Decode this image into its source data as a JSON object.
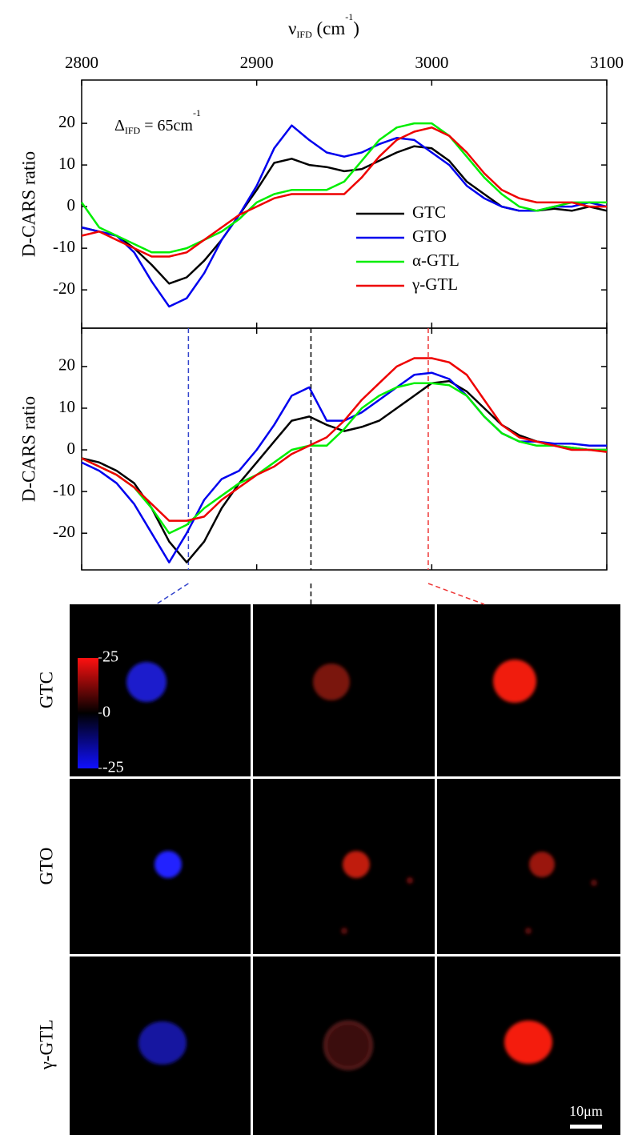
{
  "chart_data": [
    {
      "type": "line",
      "x_label": [
        "ν",
        "IFD",
        " (cm",
        "-1",
        ")"
      ],
      "y_label": "D-CARS ratio",
      "annotation": [
        "Δ",
        "IFD",
        " = 65cm",
        "-1"
      ],
      "xlim": [
        2800,
        3100
      ],
      "xticks": [
        2800,
        2900,
        3000,
        3100
      ],
      "ylim": [
        -29.2,
        30.4
      ],
      "yticks": [
        -20,
        -10,
        0,
        10,
        20
      ],
      "legend": "center right",
      "x": [
        2800,
        2810,
        2820,
        2830,
        2840,
        2850,
        2860,
        2870,
        2880,
        2890,
        2900,
        2910,
        2920,
        2930,
        2940,
        2950,
        2960,
        2970,
        2980,
        2990,
        3000,
        3010,
        3020,
        3030,
        3040,
        3050,
        3060,
        3070,
        3080,
        3090,
        3100
      ],
      "series": [
        {
          "name": "GTC",
          "color": "#000000",
          "values": [
            -5,
            -6,
            -7,
            -10,
            -14,
            -18.5,
            -17,
            -13,
            -8,
            -2,
            4,
            10.5,
            11.5,
            10,
            9.5,
            8.5,
            9,
            11,
            13,
            14.5,
            14,
            11,
            6,
            3,
            0,
            -1,
            -1,
            -0.5,
            -1,
            0,
            -1
          ]
        },
        {
          "name": "GTO",
          "color": "#0000ee",
          "values": [
            -5,
            -6,
            -7,
            -11,
            -18,
            -24,
            -22,
            -16,
            -8,
            -2,
            5,
            14,
            19.5,
            16,
            13,
            12,
            13,
            15,
            16.5,
            16,
            13,
            10,
            5,
            2,
            0,
            -1,
            -1,
            0,
            0,
            1,
            0
          ]
        },
        {
          "name": "α-GTL",
          "color": "#00ee00",
          "values": [
            1,
            -5,
            -7,
            -9,
            -11,
            -11,
            -10,
            -8,
            -6,
            -3,
            1,
            3,
            4,
            4,
            4,
            6,
            11,
            16,
            19,
            20,
            20,
            17,
            12,
            7,
            3,
            0,
            -1,
            0,
            1,
            1,
            1
          ]
        },
        {
          "name": "γ-GTL",
          "color": "#ee0000",
          "values": [
            -7,
            -6,
            -8,
            -10,
            -12,
            -12,
            -11,
            -8,
            -5,
            -2,
            0,
            2,
            3,
            3,
            3,
            3,
            7,
            12,
            16,
            18,
            19,
            17,
            13,
            8,
            4,
            2,
            1,
            1,
            1,
            0,
            0
          ]
        }
      ]
    },
    {
      "type": "line",
      "y_label": "D-CARS ratio",
      "xlim": [
        2800,
        3100
      ],
      "xticks": [
        2800,
        2900,
        3000,
        3100
      ],
      "ylim": [
        -28.8,
        29.2
      ],
      "yticks": [
        -20,
        -10,
        0,
        10,
        20
      ],
      "x": [
        2800,
        2810,
        2820,
        2830,
        2840,
        2850,
        2860,
        2870,
        2880,
        2890,
        2900,
        2910,
        2920,
        2930,
        2940,
        2950,
        2960,
        2970,
        2980,
        2990,
        3000,
        3010,
        3020,
        3030,
        3040,
        3050,
        3060,
        3070,
        3080,
        3090,
        3100
      ],
      "series": [
        {
          "name": "GTC",
          "color": "#000000",
          "values": [
            -2,
            -3,
            -5,
            -8,
            -14,
            -22,
            -27,
            -22,
            -14,
            -8,
            -3,
            2,
            7,
            8,
            6,
            4.5,
            5.5,
            7,
            10,
            13,
            16,
            16.5,
            14,
            10,
            6,
            3.5,
            2,
            1,
            0.5,
            0,
            0
          ]
        },
        {
          "name": "GTO",
          "color": "#0000ee",
          "values": [
            -3,
            -5,
            -8,
            -13,
            -20,
            -27,
            -20,
            -12,
            -7,
            -5,
            0,
            6,
            13,
            15,
            7,
            7,
            9,
            12,
            15,
            18,
            18.5,
            17,
            13,
            8,
            4,
            2,
            2,
            1.5,
            1.5,
            1,
            1
          ]
        },
        {
          "name": "α-GTL",
          "color": "#00ee00",
          "values": [
            -2,
            -4,
            -6,
            -9,
            -14,
            -20,
            -18,
            -14,
            -11,
            -8,
            -6,
            -3,
            0,
            1,
            1,
            5,
            10,
            13,
            15,
            16,
            16,
            15.5,
            13,
            8,
            4,
            2,
            1,
            1,
            0.5,
            0,
            0
          ]
        },
        {
          "name": "γ-GTL",
          "color": "#ee0000",
          "values": [
            -2,
            -4,
            -6,
            -9,
            -13,
            -17,
            -17,
            -16,
            -12,
            -9,
            -6,
            -4,
            -1,
            1,
            3,
            7,
            12,
            16,
            20,
            22,
            22,
            21,
            18,
            12,
            6,
            3,
            2,
            1,
            0,
            0,
            -0.5
          ]
        }
      ],
      "vlines": [
        {
          "x": 2861,
          "color": "#3344cc"
        },
        {
          "x": 2931,
          "color": "#000000"
        },
        {
          "x": 2998,
          "color": "#ee3333"
        }
      ]
    }
  ],
  "image_grid": {
    "row_labels": [
      "GTC",
      "GTO",
      "γ-GTL"
    ],
    "colorbar": {
      "lim": [
        -25,
        25
      ],
      "ticks": [
        25,
        0,
        -25
      ]
    },
    "scale_bar": "10μm"
  }
}
